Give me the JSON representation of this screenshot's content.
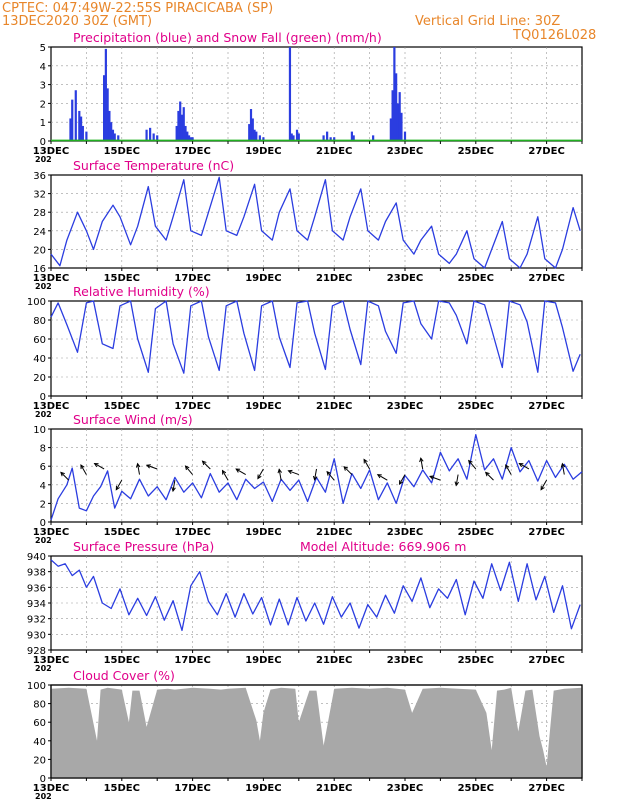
{
  "header": {
    "line1": "CPTEC:   047:49W-22:55S   PIRACICABA (SP)",
    "line2": "13DEC2020 30Z (GMT)",
    "grid_note": "Vertical Grid Line: 30Z",
    "model_code": "TQ0126L028"
  },
  "colors": {
    "header": "#e8862a",
    "title": "#e0008a",
    "series": "#2b3de0",
    "snow": "#20b020",
    "cloud": "#a8a8a8",
    "grid": "#9a9a9a"
  },
  "x_axis": {
    "start_day": 13,
    "end_day": 28,
    "tick_labels": [
      "13DEC",
      "15DEC",
      "17DEC",
      "19DEC",
      "21DEC",
      "23DEC",
      "25DEC",
      "27DEC"
    ],
    "year_fragment": "202"
  },
  "panels": [
    {
      "id": "precip",
      "title": "Precipitation (blue) and Snow Fall (green) (mm/h)",
      "ylim": [
        0,
        5
      ],
      "yticks": [
        0,
        1,
        2,
        3,
        4,
        5
      ],
      "type": "bar",
      "series": [
        {
          "name": "Precipitation",
          "x": [
            13.55,
            13.6,
            13.7,
            13.8,
            13.85,
            13.9,
            14.0,
            14.5,
            14.55,
            14.6,
            14.65,
            14.7,
            14.75,
            14.8,
            14.9,
            15.7,
            15.8,
            15.9,
            16.0,
            16.55,
            16.6,
            16.65,
            16.7,
            16.75,
            16.8,
            16.85,
            16.9,
            16.95,
            17.0,
            18.6,
            18.65,
            18.7,
            18.75,
            18.8,
            18.9,
            19.0,
            19.75,
            19.8,
            19.85,
            19.95,
            20.0,
            20.7,
            20.8,
            20.9,
            21.0,
            21.5,
            21.55,
            22.1,
            22.6,
            22.65,
            22.7,
            22.75,
            22.8,
            22.85,
            22.9,
            23.0
          ],
          "values": [
            1.2,
            2.2,
            2.7,
            1.6,
            1.3,
            0.8,
            0.5,
            3.5,
            4.9,
            2.8,
            1.6,
            1.0,
            0.6,
            0.4,
            0.3,
            0.6,
            0.7,
            0.4,
            0.3,
            0.8,
            1.6,
            2.1,
            1.4,
            1.8,
            0.8,
            0.5,
            0.3,
            0.2,
            0.2,
            0.9,
            1.7,
            1.2,
            0.6,
            0.5,
            0.3,
            0.2,
            5.0,
            0.4,
            0.3,
            0.6,
            0.4,
            0.3,
            0.5,
            0.2,
            0.2,
            0.5,
            0.3,
            0.3,
            1.2,
            2.7,
            5.0,
            3.6,
            2.0,
            2.6,
            1.5,
            0.5
          ]
        },
        {
          "name": "Snow Fall",
          "values": [
            0
          ]
        }
      ]
    },
    {
      "id": "temperature",
      "title": "Surface Temperature (nC)",
      "ylim": [
        16,
        36
      ],
      "yticks": [
        16,
        20,
        24,
        28,
        32,
        36
      ],
      "type": "line",
      "series": [
        {
          "name": "Temperature",
          "x": [
            13.0,
            13.25,
            13.45,
            13.75,
            14.0,
            14.2,
            14.45,
            14.75,
            14.95,
            15.25,
            15.45,
            15.75,
            15.95,
            16.25,
            16.45,
            16.75,
            16.95,
            17.25,
            17.45,
            17.75,
            17.95,
            18.25,
            18.45,
            18.75,
            18.95,
            19.25,
            19.45,
            19.75,
            19.95,
            20.25,
            20.45,
            20.75,
            20.95,
            21.25,
            21.45,
            21.75,
            21.95,
            22.25,
            22.45,
            22.75,
            22.95,
            23.25,
            23.45,
            23.75,
            23.95,
            24.25,
            24.45,
            24.75,
            24.95,
            25.25,
            25.45,
            25.75,
            25.95,
            26.25,
            26.45,
            26.75,
            26.95,
            27.25,
            27.45,
            27.75,
            27.95
          ],
          "values": [
            19,
            16.5,
            22,
            28,
            24,
            20,
            26,
            29.5,
            27,
            21,
            25,
            33.5,
            25,
            22,
            27,
            35,
            24,
            23,
            28,
            35.5,
            24,
            23,
            27,
            34,
            24,
            22,
            28,
            33,
            24,
            22,
            27,
            35,
            24,
            22,
            27,
            33,
            24,
            22,
            26,
            30,
            22,
            19,
            22,
            25,
            19,
            17,
            19,
            24,
            18,
            16,
            20,
            26,
            18,
            16,
            19,
            27,
            18,
            16,
            20,
            29,
            24
          ]
        }
      ]
    },
    {
      "id": "humidity",
      "title": "Relative Humidity (%)",
      "ylim": [
        0,
        100
      ],
      "yticks": [
        0,
        20,
        40,
        60,
        80,
        100
      ],
      "type": "line",
      "series": [
        {
          "name": "Relative Humidity",
          "x": [
            13.0,
            13.2,
            13.45,
            13.75,
            14.0,
            14.2,
            14.45,
            14.75,
            14.95,
            15.25,
            15.45,
            15.75,
            15.95,
            16.25,
            16.45,
            16.75,
            16.95,
            17.25,
            17.45,
            17.75,
            17.95,
            18.25,
            18.45,
            18.75,
            18.95,
            19.25,
            19.45,
            19.75,
            19.95,
            20.25,
            20.45,
            20.75,
            20.95,
            21.25,
            21.45,
            21.75,
            21.95,
            22.25,
            22.45,
            22.75,
            22.95,
            23.25,
            23.45,
            23.75,
            23.95,
            24.25,
            24.45,
            24.75,
            24.95,
            25.25,
            25.45,
            25.75,
            25.95,
            26.25,
            26.45,
            26.75,
            26.95,
            27.25,
            27.45,
            27.75,
            27.95
          ],
          "values": [
            83,
            98,
            75,
            46,
            98,
            100,
            55,
            50,
            95,
            100,
            60,
            25,
            92,
            100,
            55,
            24,
            95,
            100,
            62,
            27,
            95,
            100,
            66,
            27,
            95,
            100,
            62,
            30,
            98,
            100,
            66,
            28,
            95,
            100,
            70,
            33,
            100,
            95,
            68,
            45,
            98,
            100,
            76,
            60,
            100,
            98,
            85,
            55,
            100,
            96,
            70,
            30,
            100,
            96,
            78,
            25,
            100,
            98,
            72,
            26,
            44
          ]
        }
      ]
    },
    {
      "id": "wind",
      "title": "Surface Wind (m/s)",
      "ylim": [
        0,
        10
      ],
      "yticks": [
        0,
        2,
        4,
        6,
        8,
        10
      ],
      "type": "line",
      "series": [
        {
          "name": "Wind Speed",
          "x": [
            13.0,
            13.2,
            13.45,
            13.6,
            13.8,
            14.0,
            14.2,
            14.4,
            14.6,
            14.8,
            15.0,
            15.25,
            15.5,
            15.75,
            16.0,
            16.25,
            16.5,
            16.75,
            17.0,
            17.25,
            17.5,
            17.75,
            18.0,
            18.25,
            18.5,
            18.75,
            19.0,
            19.25,
            19.5,
            19.75,
            20.0,
            20.25,
            20.5,
            20.75,
            21.0,
            21.25,
            21.5,
            21.75,
            22.0,
            22.25,
            22.5,
            22.75,
            23.0,
            23.25,
            23.5,
            23.75,
            24.0,
            24.25,
            24.5,
            24.75,
            25.0,
            25.25,
            25.5,
            25.75,
            26.0,
            26.25,
            26.5,
            26.75,
            27.0,
            27.25,
            27.5,
            27.75,
            28.0
          ],
          "values": [
            0.2,
            2.5,
            4,
            5.8,
            1.5,
            1.2,
            2.8,
            3.8,
            5.5,
            1.5,
            3.3,
            2.5,
            4.6,
            2.8,
            3.8,
            2.4,
            4.8,
            3.2,
            4.2,
            2.6,
            5.2,
            3.2,
            4.2,
            2.4,
            4.6,
            3.6,
            4.3,
            2.2,
            4.6,
            3.4,
            4.5,
            2.2,
            4.8,
            3.2,
            6.8,
            2.0,
            5.2,
            3.6,
            5.6,
            2.4,
            4.2,
            2.0,
            5.0,
            3.8,
            5.6,
            4.2,
            7.5,
            5.5,
            6.8,
            4.6,
            9.4,
            5.6,
            6.8,
            4.6,
            8.0,
            5.4,
            6.6,
            4.4,
            6.6,
            4.8,
            6.2,
            4.6,
            5.4
          ]
        }
      ],
      "arrows_note": "direction arrows every 12h (not a number readout)"
    },
    {
      "id": "pressure",
      "title": "Surface Pressure (hPa)",
      "extra_label": "Model Altitude: 669.906  m",
      "ylim": [
        928,
        940
      ],
      "yticks": [
        928,
        930,
        932,
        934,
        936,
        938,
        940
      ],
      "type": "line",
      "series": [
        {
          "name": "Pressure",
          "x": [
            13.0,
            13.2,
            13.4,
            13.6,
            13.8,
            14.0,
            14.2,
            14.45,
            14.7,
            14.95,
            15.2,
            15.45,
            15.7,
            15.95,
            16.2,
            16.45,
            16.7,
            16.95,
            17.2,
            17.45,
            17.7,
            17.95,
            18.2,
            18.45,
            18.7,
            18.95,
            19.2,
            19.45,
            19.7,
            19.95,
            20.2,
            20.45,
            20.7,
            20.95,
            21.2,
            21.45,
            21.7,
            21.95,
            22.2,
            22.45,
            22.7,
            22.95,
            23.2,
            23.45,
            23.7,
            23.95,
            24.2,
            24.45,
            24.7,
            24.95,
            25.2,
            25.45,
            25.7,
            25.95,
            26.2,
            26.45,
            26.7,
            26.95,
            27.2,
            27.45,
            27.7,
            27.95
          ],
          "values": [
            939.5,
            938.7,
            939,
            937.5,
            938.2,
            936,
            937.4,
            934,
            933.3,
            935.8,
            932.5,
            934.6,
            932.4,
            934.8,
            931.8,
            934.3,
            930.5,
            936.2,
            938,
            934.2,
            932.5,
            935.2,
            932.2,
            935.2,
            932.6,
            934.7,
            931.2,
            934.5,
            931.2,
            934.7,
            931.7,
            934,
            931.3,
            934.8,
            932.2,
            934,
            930.8,
            933.8,
            932.2,
            935,
            932.7,
            936.2,
            934.2,
            937.2,
            933.4,
            935.8,
            934.6,
            937,
            932.5,
            936.8,
            934.6,
            939,
            935.6,
            939.2,
            934.2,
            939,
            934.4,
            937.4,
            932.8,
            936.2,
            930.7,
            933.8
          ]
        }
      ]
    },
    {
      "id": "cloud",
      "title": "Cloud Cover (%)",
      "ylim": [
        0,
        100
      ],
      "yticks": [
        0,
        20,
        40,
        60,
        80,
        100
      ],
      "type": "area",
      "series": [
        {
          "name": "Cloud Cover",
          "x": [
            13.0,
            13.5,
            14.0,
            14.3,
            14.4,
            14.6,
            15.0,
            15.2,
            15.3,
            15.5,
            15.7,
            16.0,
            16.3,
            16.5,
            17.0,
            17.5,
            17.8,
            18.0,
            18.5,
            18.8,
            18.9,
            19.0,
            19.2,
            19.5,
            19.9,
            20.0,
            20.3,
            20.5,
            20.7,
            20.8,
            21.0,
            21.5,
            22.0,
            22.5,
            23.0,
            23.2,
            23.5,
            24.0,
            24.5,
            25.0,
            25.3,
            25.45,
            25.6,
            25.8,
            26.0,
            26.2,
            26.4,
            26.6,
            26.8,
            26.9,
            27.0,
            27.2,
            27.5,
            28.0
          ],
          "values": [
            96,
            97,
            96,
            40,
            95,
            97,
            95,
            60,
            94,
            94,
            55,
            95,
            96,
            95,
            97,
            96,
            95,
            96,
            97,
            62,
            40,
            70,
            95,
            97,
            96,
            60,
            94,
            94,
            35,
            55,
            96,
            97,
            96,
            97,
            95,
            70,
            96,
            97,
            96,
            95,
            70,
            30,
            94,
            95,
            97,
            50,
            94,
            95,
            45,
            30,
            12,
            94,
            96,
            97
          ]
        }
      ]
    }
  ]
}
